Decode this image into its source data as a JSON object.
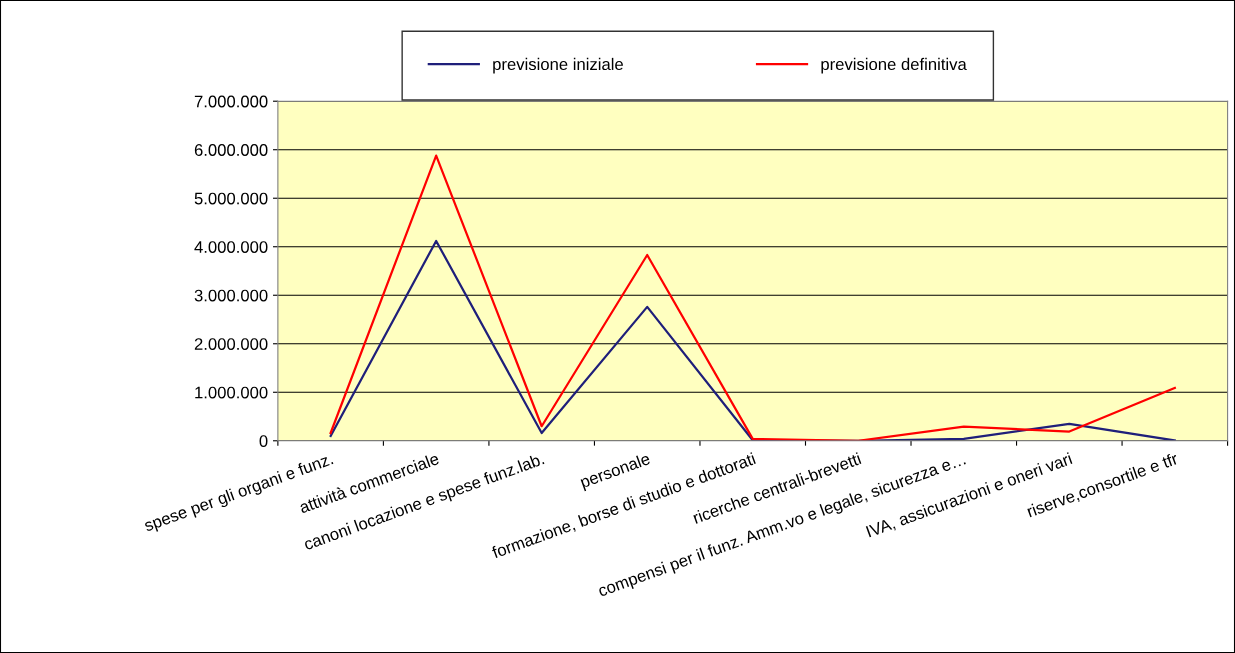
{
  "chart_data": {
    "type": "line",
    "categories": [
      "spese per gli organi e funz.",
      "attività commerciale",
      "canoni locazione e spese funz.lab.",
      "personale",
      "formazione, borse di studio e dottorati",
      "ricerche centrali-brevetti",
      "compensi per il funz. Amm.vo e legale, sicurezza e…",
      "IVA, assicurazioni e oneri vari",
      "riserve,consortile e tfr"
    ],
    "series": [
      {
        "name": "previsione iniziale",
        "color": "#1f1f7a",
        "values": [
          100000,
          4120000,
          160000,
          2760000,
          10000,
          0,
          40000,
          350000,
          5000
        ]
      },
      {
        "name": "previsione definitiva",
        "color": "#ff0000",
        "values": [
          160000,
          5880000,
          300000,
          3830000,
          40000,
          0,
          290000,
          190000,
          1090000
        ]
      }
    ],
    "ylim": [
      0,
      7000000
    ],
    "yticks": [
      0,
      {
        "value": 1000000,
        "label": "1.000.000"
      },
      {
        "value": 2000000,
        "label": "2.000.000"
      },
      {
        "value": 3000000,
        "label": "3.000.000"
      },
      {
        "value": 4000000,
        "label": "4.000.000"
      },
      {
        "value": 5000000,
        "label": "5.000.000"
      },
      {
        "value": 6000000,
        "label": "6.000.000"
      },
      {
        "value": 7000000,
        "label": "7.000.000"
      }
    ],
    "grid": "y",
    "legend": "top",
    "marker": "none",
    "line_style": "solid"
  }
}
